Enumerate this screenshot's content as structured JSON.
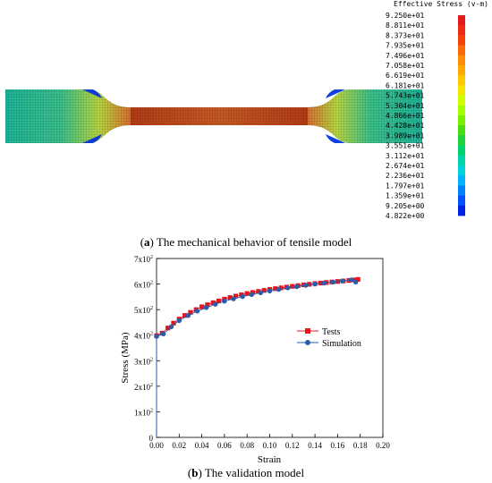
{
  "panel_a": {
    "legend_title": "Effective Stress (v-m)",
    "legend_values": [
      "9.250e+01",
      "8.811e+01",
      "8.373e+01",
      "7.935e+01",
      "7.496e+01",
      "7.058e+01",
      "6.619e+01",
      "6.181e+01",
      "5.743e+01",
      "5.304e+01",
      "4.866e+01",
      "4.428e+01",
      "3.989e+01",
      "3.551e+01",
      "3.112e+01",
      "2.674e+01",
      "2.236e+01",
      "1.797e+01",
      "1.359e+01",
      "9.205e+00",
      "4.822e+00"
    ],
    "legend_colors": [
      "#e31a1c",
      "#ee2a10",
      "#f6420a",
      "#fb6a08",
      "#ff8c05",
      "#ffaa00",
      "#ffc800",
      "#f0e600",
      "#cfff00",
      "#a5ff00",
      "#78f000",
      "#4bdc14",
      "#1ed23c",
      "#00d26e",
      "#00d2aa",
      "#00d2dc",
      "#00b4ff",
      "#0082ff",
      "#0050ff",
      "#0023e6",
      "#000096"
    ],
    "caption_bold": "a",
    "caption_text": " The mechanical behavior of tensile model"
  },
  "chart_data": {
    "type": "line",
    "xlabel": "Strain",
    "ylabel": "Stress (MPa)",
    "xlim": [
      0.0,
      0.2
    ],
    "ylim": [
      0,
      700
    ],
    "x_ticks": [
      "0.00",
      "0.02",
      "0.04",
      "0.06",
      "0.08",
      "0.10",
      "0.12",
      "0.14",
      "0.16",
      "0.18",
      "0.20"
    ],
    "y_ticks": [
      {
        "value": 0,
        "mant": "0",
        "exp": ""
      },
      {
        "value": 100,
        "mant": "1x10",
        "exp": "2"
      },
      {
        "value": 200,
        "mant": "2x10",
        "exp": "2"
      },
      {
        "value": 300,
        "mant": "3x10",
        "exp": "2"
      },
      {
        "value": 400,
        "mant": "4x10",
        "exp": "2"
      },
      {
        "value": 500,
        "mant": "5x10",
        "exp": "2"
      },
      {
        "value": 600,
        "mant": "6x10",
        "exp": "2"
      },
      {
        "value": 700,
        "mant": "7x10",
        "exp": "2"
      }
    ],
    "legend_position": "center-right",
    "series": [
      {
        "name": "Tests",
        "color": "#e8141e",
        "marker": "square",
        "x": [
          0.0,
          0.0,
          0.005,
          0.01,
          0.015,
          0.02,
          0.025,
          0.03,
          0.035,
          0.04,
          0.045,
          0.05,
          0.055,
          0.06,
          0.065,
          0.07,
          0.075,
          0.08,
          0.085,
          0.09,
          0.095,
          0.1,
          0.105,
          0.11,
          0.115,
          0.12,
          0.125,
          0.13,
          0.135,
          0.14,
          0.145,
          0.15,
          0.155,
          0.16,
          0.165,
          0.17,
          0.175,
          0.178
        ],
        "y": [
          0,
          398,
          408,
          428,
          447,
          463,
          477,
          489,
          500,
          511,
          519,
          527,
          534,
          541,
          547,
          553,
          558,
          563,
          567,
          571,
          575,
          579,
          582,
          585,
          588,
          591,
          594,
          597,
          599,
          602,
          604,
          606,
          608,
          610,
          612,
          614,
          616,
          618
        ]
      },
      {
        "name": "Simulation",
        "color": "#2a5ea8",
        "marker": "circle",
        "x": [
          0.0,
          0.0,
          0.006,
          0.013,
          0.02,
          0.028,
          0.036,
          0.044,
          0.052,
          0.06,
          0.068,
          0.076,
          0.084,
          0.092,
          0.1,
          0.108,
          0.116,
          0.124,
          0.132,
          0.14,
          0.148,
          0.156,
          0.164,
          0.172,
          0.176
        ],
        "y": [
          0,
          395,
          405,
          433,
          457,
          477,
          494,
          508,
          521,
          533,
          542,
          551,
          559,
          566,
          573,
          579,
          585,
          590,
          595,
          600,
          604,
          608,
          612,
          616,
          608
        ]
      }
    ],
    "caption_bold": "b",
    "caption_text": " The validation model"
  }
}
